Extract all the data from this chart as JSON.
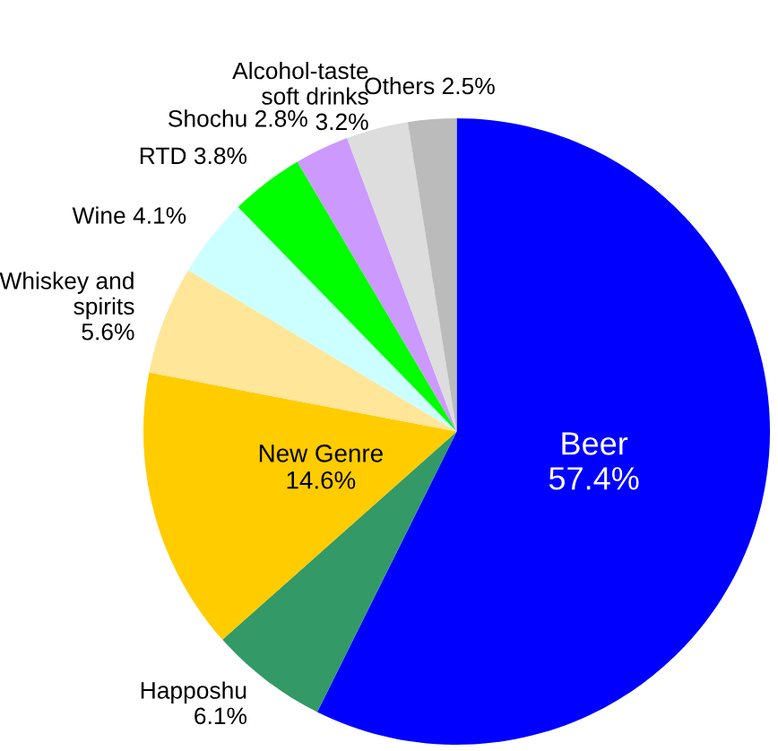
{
  "chart_data": {
    "type": "pie",
    "categories": [
      "Beer",
      "Happoshu",
      "New Genre",
      "Whiskey and\nspirits",
      "Wine",
      "RTD",
      "Shochu",
      "Alcohol-taste\nsoft drinks",
      "Others"
    ],
    "values": [
      57.4,
      6.1,
      14.6,
      5.6,
      4.1,
      3.8,
      2.8,
      3.2,
      2.5
    ],
    "value_labels": [
      "57.4%",
      "6.1%",
      "14.6%",
      "5.6%",
      "4.1%",
      "3.8%",
      "2.8%",
      "3.2%",
      "2.5%"
    ],
    "colors": [
      "#0000ff",
      "#339966",
      "#ffcc00",
      "#ffe699",
      "#ccffff",
      "#00ff00",
      "#cc99ff",
      "#dddddd",
      "#bbbbbb"
    ]
  }
}
